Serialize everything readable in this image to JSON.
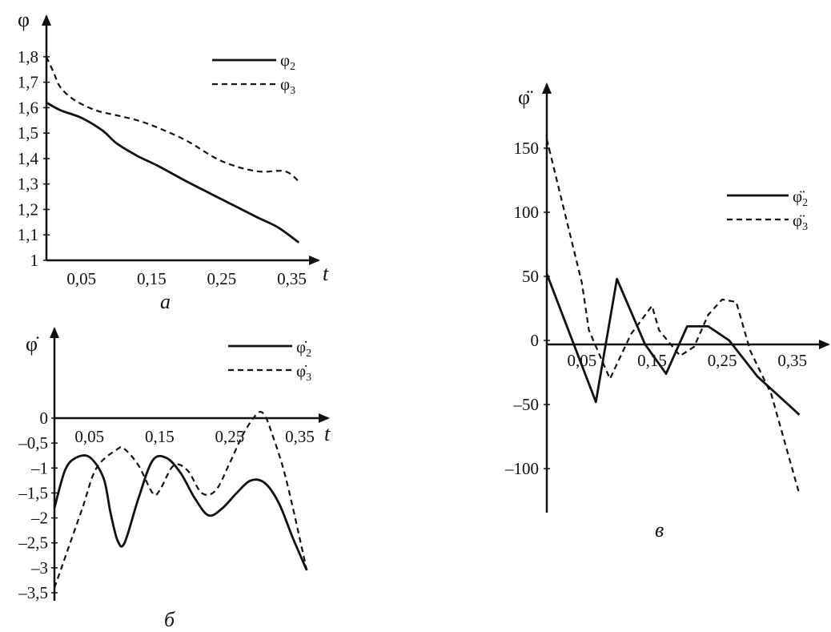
{
  "chart_data": [
    {
      "type": "line",
      "caption": "а",
      "ylabel": "φ",
      "xlabel": "t",
      "xlim": [
        0,
        0.37
      ],
      "ylim": [
        1,
        1.85
      ],
      "xticks": [
        0.05,
        0.15,
        0.25,
        0.35
      ],
      "xtick_labels": [
        "0,05",
        "0,15",
        "0,25",
        "0,35"
      ],
      "yticks": [
        1,
        1.1,
        1.2,
        1.3,
        1.4,
        1.5,
        1.6,
        1.7,
        1.8
      ],
      "ytick_labels": [
        "1",
        "1,1",
        "1,2",
        "1,3",
        "1,4",
        "1,5",
        "1,6",
        "1,7",
        "1,8"
      ],
      "legend_position": "top-right",
      "series": [
        {
          "name": "φ",
          "sub": "2",
          "style": "solid",
          "x": [
            0,
            0.02,
            0.05,
            0.08,
            0.1,
            0.13,
            0.16,
            0.2,
            0.25,
            0.3,
            0.33,
            0.36
          ],
          "y": [
            1.62,
            1.59,
            1.56,
            1.51,
            1.46,
            1.41,
            1.37,
            1.31,
            1.24,
            1.17,
            1.13,
            1.07
          ]
        },
        {
          "name": "φ",
          "sub": "3",
          "style": "dashed",
          "x": [
            0,
            0.01,
            0.02,
            0.04,
            0.07,
            0.1,
            0.13,
            0.16,
            0.2,
            0.25,
            0.3,
            0.34,
            0.36
          ],
          "y": [
            1.8,
            1.74,
            1.68,
            1.63,
            1.59,
            1.57,
            1.55,
            1.52,
            1.47,
            1.39,
            1.35,
            1.35,
            1.31
          ]
        }
      ]
    },
    {
      "type": "line",
      "caption": "б",
      "ylabel": "φ̇",
      "xlabel": "t",
      "xlim": [
        0,
        0.37
      ],
      "ylim": [
        -3.5,
        0.3
      ],
      "xticks": [
        0.05,
        0.15,
        0.25,
        0.35
      ],
      "xtick_labels": [
        "0,05",
        "0,15",
        "0,25",
        "0,35"
      ],
      "yticks": [
        0,
        -0.5,
        -1,
        -1.5,
        -2,
        -2.5,
        -3,
        -3.5
      ],
      "ytick_labels": [
        "0",
        "–0,5",
        "–1",
        "–1,5",
        "–2",
        "–2,5",
        "–3",
        "–3,5"
      ],
      "legend_position": "top-right",
      "series": [
        {
          "name": "φ̇",
          "sub": "2",
          "style": "solid",
          "x": [
            0,
            0.015,
            0.03,
            0.05,
            0.07,
            0.08,
            0.09,
            0.1,
            0.12,
            0.14,
            0.16,
            0.18,
            0.2,
            0.22,
            0.24,
            0.26,
            0.28,
            0.3,
            0.32,
            0.34,
            0.36
          ],
          "y": [
            -1.8,
            -1.05,
            -0.8,
            -0.78,
            -1.2,
            -1.9,
            -2.45,
            -2.5,
            -1.6,
            -0.85,
            -0.8,
            -1.1,
            -1.6,
            -1.95,
            -1.8,
            -1.5,
            -1.25,
            -1.3,
            -1.7,
            -2.4,
            -3.05
          ]
        },
        {
          "name": "φ̇",
          "sub": "3",
          "style": "dashed",
          "x": [
            0,
            0.01,
            0.02,
            0.04,
            0.06,
            0.09,
            0.1,
            0.12,
            0.14,
            0.15,
            0.17,
            0.19,
            0.21,
            0.23,
            0.25,
            0.27,
            0.29,
            0.3,
            0.31,
            0.33,
            0.36
          ],
          "y": [
            -3.4,
            -3.0,
            -2.6,
            -1.8,
            -1.0,
            -0.62,
            -0.62,
            -0.95,
            -1.5,
            -1.45,
            -0.95,
            -1.05,
            -1.5,
            -1.45,
            -0.9,
            -0.3,
            0.1,
            0.05,
            -0.3,
            -1.2,
            -3.05
          ]
        }
      ]
    },
    {
      "type": "line",
      "caption": "в",
      "ylabel": "φ̈",
      "xlabel": "t",
      "xlim": [
        0,
        0.38
      ],
      "ylim": [
        -125,
        175
      ],
      "xticks": [
        0.05,
        0.15,
        0.25,
        0.35
      ],
      "xtick_labels": [
        "0,05",
        "0,15",
        "0,25",
        "0,35"
      ],
      "yticks": [
        150,
        100,
        50,
        0,
        -50,
        -100
      ],
      "ytick_labels": [
        "150",
        "100",
        "50",
        "0",
        "–50",
        "–100"
      ],
      "legend_position": "right",
      "series": [
        {
          "name": "φ̈",
          "sub": "2",
          "style": "solid",
          "x": [
            0,
            0.07,
            0.1,
            0.14,
            0.17,
            0.2,
            0.23,
            0.26,
            0.3,
            0.36
          ],
          "y": [
            52,
            -48,
            48,
            -3,
            -26,
            11,
            11,
            0,
            -28,
            -58
          ]
        },
        {
          "name": "φ̈",
          "sub": "3",
          "style": "dashed",
          "x": [
            0,
            0.05,
            0.06,
            0.09,
            0.12,
            0.15,
            0.16,
            0.19,
            0.21,
            0.23,
            0.25,
            0.27,
            0.29,
            0.32,
            0.36
          ],
          "y": [
            157,
            45,
            8,
            -30,
            5,
            27,
            8,
            -12,
            -5,
            20,
            32,
            30,
            -8,
            -42,
            -120
          ]
        }
      ]
    }
  ]
}
